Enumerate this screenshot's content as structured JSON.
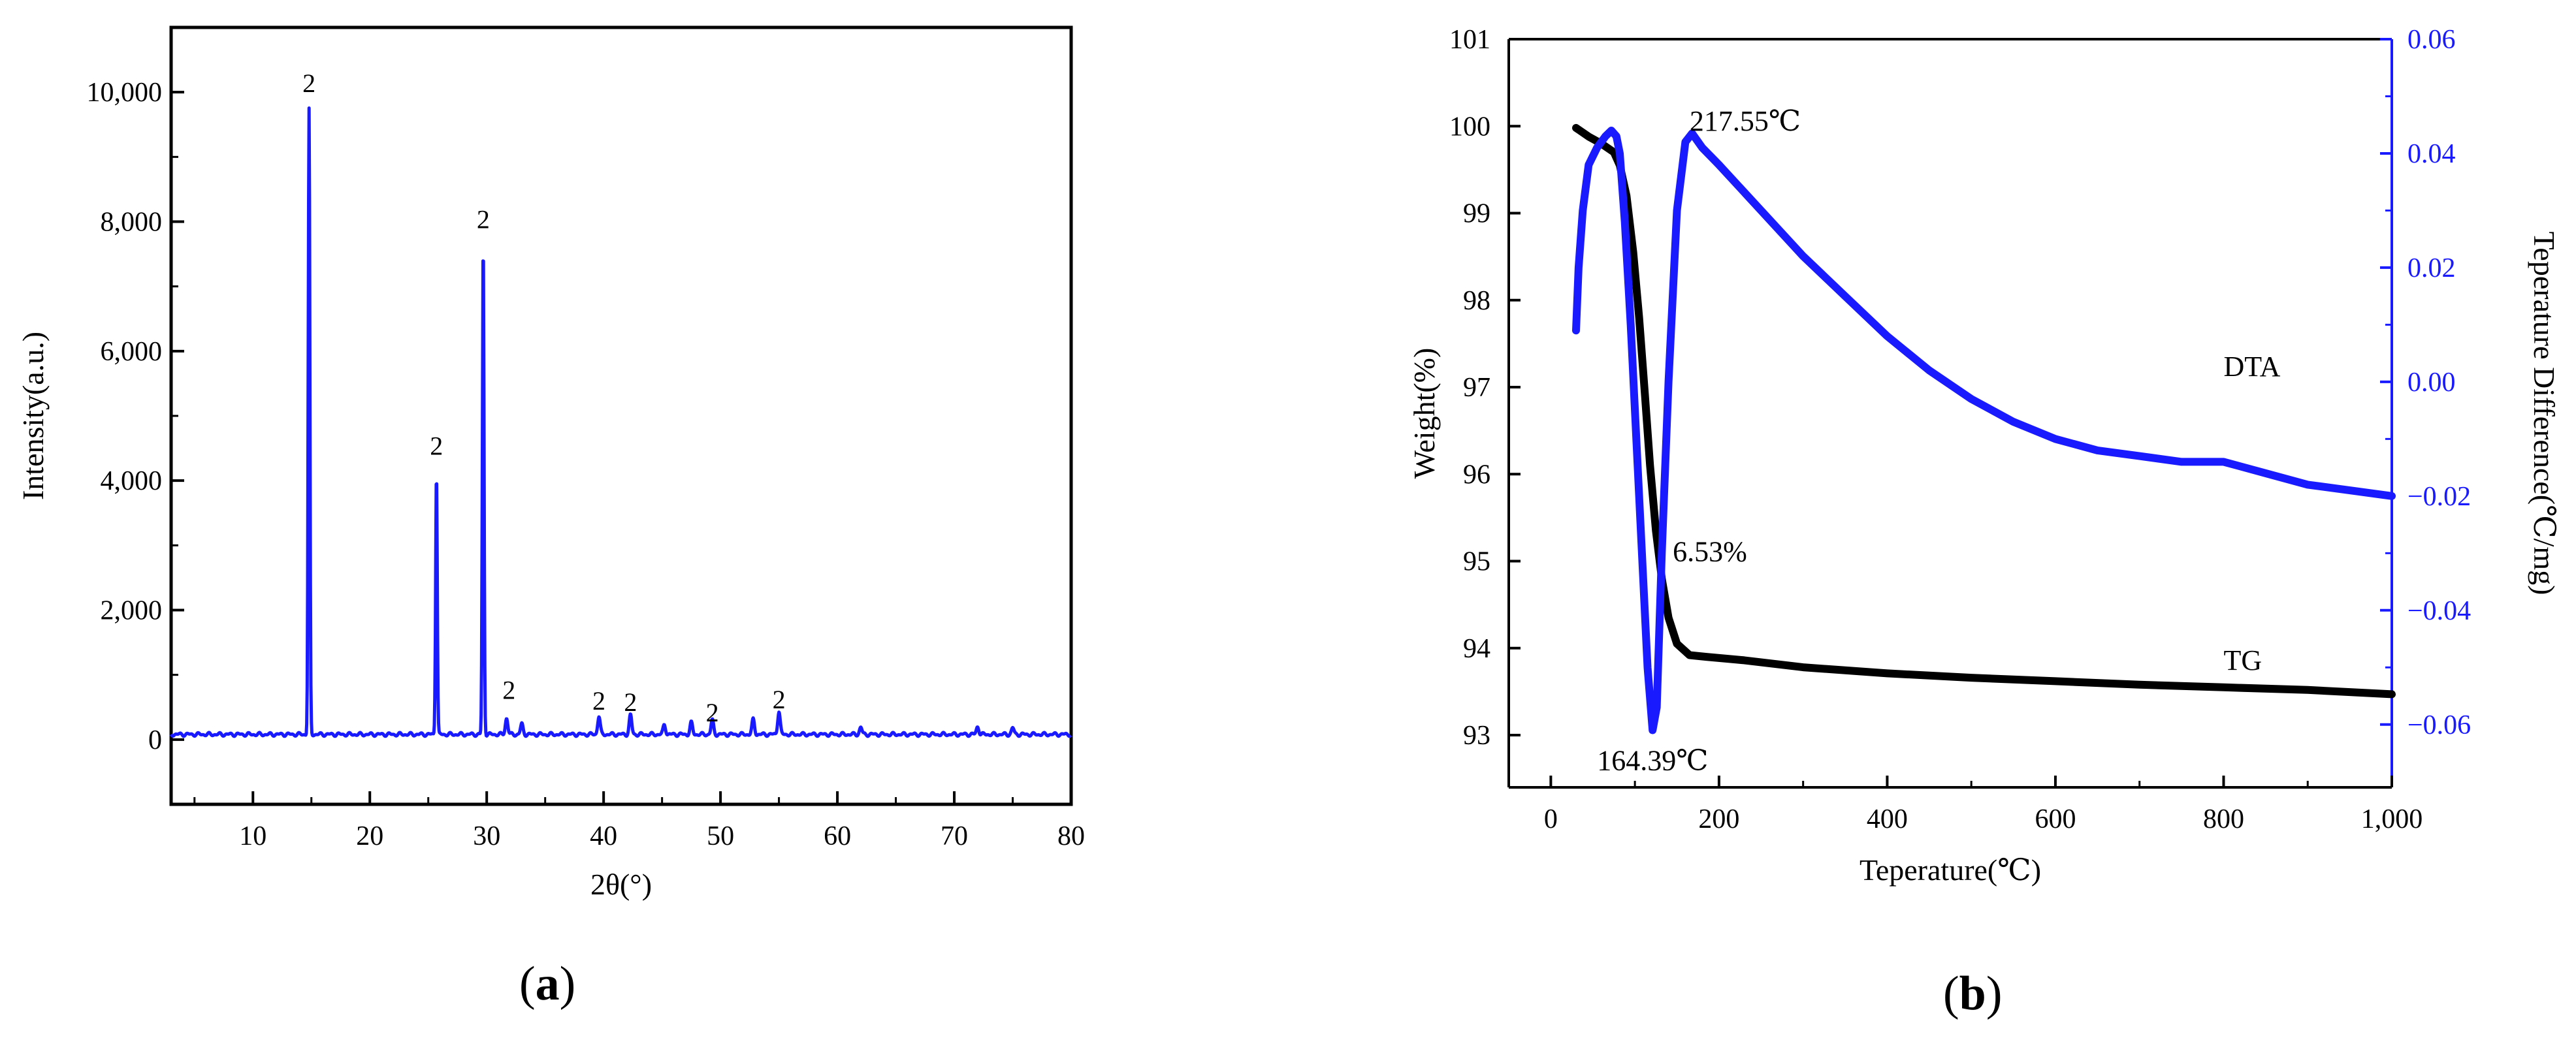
{
  "panels": {
    "a": {
      "open": "(",
      "letter": "a",
      "close": ")"
    },
    "b": {
      "open": "(",
      "letter": "b",
      "close": ")"
    }
  },
  "chart_data": [
    {
      "type": "line",
      "panel": "a",
      "xlabel": "2θ(°)",
      "ylabel": "Intensity(a.u.)",
      "xlim": [
        3,
        80
      ],
      "ylim": [
        -1000,
        11000
      ],
      "xticks": [
        10,
        20,
        30,
        40,
        50,
        60,
        70,
        80
      ],
      "yticks": [
        0,
        2000,
        4000,
        6000,
        8000,
        10000
      ],
      "ytick_labels": [
        "0",
        "2,000",
        "4,000",
        "6,000",
        "8,000",
        "10,000"
      ],
      "grid": false,
      "colors": {
        "series": "#1a1aff",
        "axes": "#000000"
      },
      "series": [
        {
          "baseline": 80,
          "peaks": [
            {
              "x": 14.8,
              "y": 9650
            },
            {
              "x": 25.7,
              "y": 4050
            },
            {
              "x": 29.7,
              "y": 7600
            },
            {
              "x": 31.7,
              "y": 250
            },
            {
              "x": 33.0,
              "y": 160
            },
            {
              "x": 39.6,
              "y": 280
            },
            {
              "x": 42.3,
              "y": 300
            },
            {
              "x": 45.2,
              "y": 150
            },
            {
              "x": 47.5,
              "y": 180
            },
            {
              "x": 49.3,
              "y": 220
            },
            {
              "x": 52.8,
              "y": 230
            },
            {
              "x": 55.0,
              "y": 360
            },
            {
              "x": 62.0,
              "y": 110
            },
            {
              "x": 72.0,
              "y": 120
            },
            {
              "x": 75.0,
              "y": 100
            }
          ]
        }
      ],
      "annotations": [
        {
          "text": "2",
          "x": 14.8,
          "y": 10000
        },
        {
          "text": "2",
          "x": 25.7,
          "y": 4400
        },
        {
          "text": "2",
          "x": 29.7,
          "y": 7900
        },
        {
          "text": "2",
          "x": 31.9,
          "y": 630
        },
        {
          "text": "2",
          "x": 39.6,
          "y": 460
        },
        {
          "text": "2",
          "x": 42.3,
          "y": 440
        },
        {
          "text": "2",
          "x": 49.3,
          "y": 280
        },
        {
          "text": "2",
          "x": 55.0,
          "y": 480
        }
      ]
    },
    {
      "type": "line",
      "panel": "b",
      "xlabel": "Teperature(℃)",
      "ylabel": "Weight(%)",
      "y2label": "Teperature Difference(℃/mg)",
      "xlim": [
        -50,
        1000
      ],
      "ylim": [
        92.4,
        101
      ],
      "y2lim": [
        -0.071,
        0.06
      ],
      "xticks": [
        0,
        200,
        400,
        600,
        800,
        1000
      ],
      "xtick_labels": [
        "0",
        "200",
        "400",
        "600",
        "800",
        "1,000"
      ],
      "yticks": [
        93,
        94,
        95,
        96,
        97,
        98,
        99,
        100,
        101
      ],
      "y2ticks": [
        -0.06,
        -0.04,
        -0.02,
        0.0,
        0.02,
        0.04,
        0.06
      ],
      "y2tick_labels": [
        "−0.06",
        "−0.04",
        "−0.02",
        "0.00",
        "0.02",
        "0.04",
        "0.06"
      ],
      "grid": false,
      "colors": {
        "TG": "#000000",
        "DTA": "#1a1aff",
        "y2axis": "#1a1aff"
      },
      "series": [
        {
          "name": "TG",
          "axis": "left",
          "x": [
            30,
            45,
            60,
            75,
            82,
            90,
            98,
            105,
            112,
            118,
            125,
            132,
            140,
            150,
            165,
            185,
            230,
            300,
            400,
            500,
            600,
            700,
            800,
            900,
            1000
          ],
          "y": [
            99.98,
            99.88,
            99.8,
            99.7,
            99.55,
            99.2,
            98.55,
            97.8,
            96.9,
            96.1,
            95.35,
            94.8,
            94.35,
            94.05,
            93.92,
            93.9,
            93.86,
            93.78,
            93.71,
            93.66,
            93.62,
            93.58,
            93.55,
            93.52,
            93.47
          ]
        },
        {
          "name": "DTA",
          "axis": "right",
          "x": [
            30,
            33,
            38,
            45,
            55,
            65,
            72,
            78,
            82,
            88,
            95,
            105,
            115,
            121,
            126,
            132,
            140,
            150,
            160,
            168,
            180,
            200,
            250,
            300,
            350,
            400,
            450,
            500,
            550,
            600,
            650,
            700,
            750,
            800,
            850,
            900,
            950,
            1000
          ],
          "y": [
            0.009,
            0.02,
            0.03,
            0.038,
            0.041,
            0.043,
            0.044,
            0.043,
            0.04,
            0.028,
            0.01,
            -0.02,
            -0.05,
            -0.061,
            -0.057,
            -0.03,
            0.0,
            0.03,
            0.042,
            0.0435,
            0.041,
            0.038,
            0.03,
            0.022,
            0.015,
            0.008,
            0.002,
            -0.003,
            -0.007,
            -0.01,
            -0.012,
            -0.013,
            -0.014,
            -0.014,
            -0.016,
            -0.018,
            -0.019,
            -0.02
          ]
        }
      ],
      "annotations": [
        {
          "text": "217.55℃",
          "x": 165,
          "y2": 0.044
        },
        {
          "text": "DTA",
          "x": 800,
          "y2": 0.001
        },
        {
          "text": "6.53%",
          "x": 145,
          "y": 95.0
        },
        {
          "text": "TG",
          "x": 800,
          "y": 93.75
        },
        {
          "text": "164.39℃",
          "x": 55,
          "y": 92.6
        }
      ]
    }
  ]
}
